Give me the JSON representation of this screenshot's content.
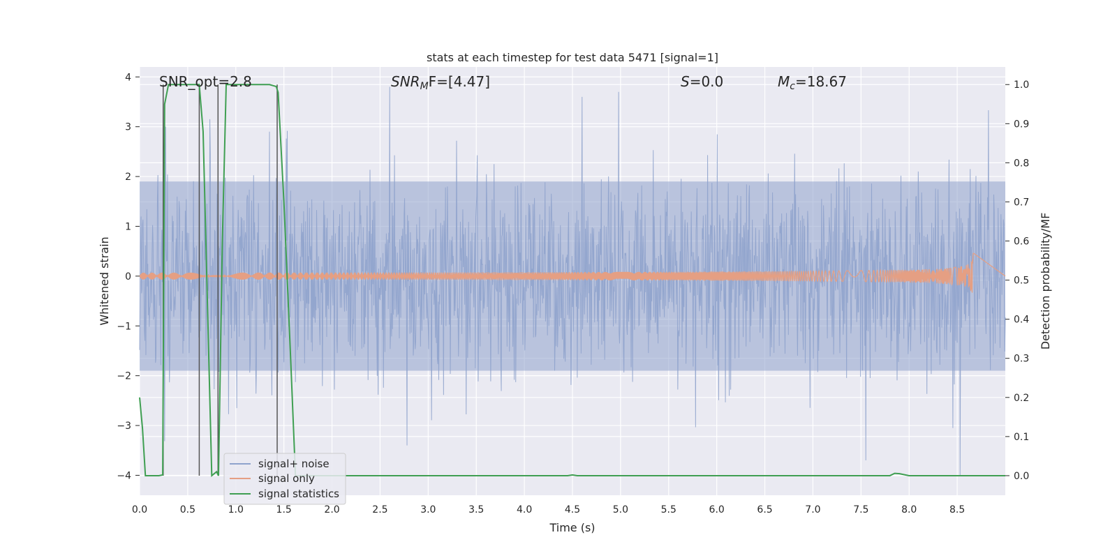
{
  "chart_data": {
    "type": "line",
    "title": "stats at each timestep for test data 5471 [signal=1]",
    "xlabel": "Time (s)",
    "ylabel": "Whitened strain",
    "ylabel_right": "Detection probability/MF",
    "xlim": [
      0.0,
      9.0
    ],
    "ylim": [
      -4.4,
      4.2
    ],
    "ylim_right": [
      -0.05,
      1.045
    ],
    "x_ticks": [
      "0.0",
      "0.5",
      "1.0",
      "1.5",
      "2.0",
      "2.5",
      "3.0",
      "3.5",
      "4.0",
      "4.5",
      "5.0",
      "5.5",
      "6.0",
      "6.5",
      "7.0",
      "7.5",
      "8.0",
      "8.5"
    ],
    "y_ticks": [
      "4",
      "3",
      "2",
      "1",
      "0",
      "−1",
      "−2",
      "−3",
      "−4"
    ],
    "y_right_ticks": [
      "1.0",
      "0.9",
      "0.8",
      "0.7",
      "0.6",
      "0.5",
      "0.4",
      "0.3",
      "0.2",
      "0.1",
      "0.0"
    ],
    "annotations": {
      "snr_opt": "SNR_opt=2.8",
      "snr_mf_name": "SNR",
      "snr_mf_sub": "M",
      "snr_mf_tail": "F=[4.47]",
      "s_name": "S",
      "s_val": "=0.0",
      "mc_name": "M",
      "mc_sub": "c",
      "mc_val": "=18.67"
    },
    "series": [
      {
        "name": "signal+ noise",
        "color": "#8fa3cc",
        "axis": "left",
        "sample_rate_hz": 200,
        "band_upper": 1.9,
        "band_lower": -1.9,
        "peaks": [
          [
            0.27,
            3.0
          ],
          [
            0.62,
            2.8
          ],
          [
            1.35,
            2.9
          ],
          [
            2.6,
            3.8
          ],
          [
            2.78,
            -3.4
          ],
          [
            4.6,
            3.6
          ],
          [
            4.98,
            3.7
          ],
          [
            7.55,
            -3.7
          ],
          [
            8.53,
            -4.0
          ]
        ]
      },
      {
        "name": "signal only",
        "color": "#e59f83",
        "axis": "left",
        "chirp_end": 8.67,
        "max_amplitude": 0.52
      },
      {
        "name": "signal statistics",
        "color": "#3f9f52",
        "axis": "right",
        "x": [
          0.0,
          0.03,
          0.06,
          0.1,
          0.2,
          0.24,
          0.26,
          0.3,
          0.4,
          0.55,
          0.6,
          0.62,
          0.66,
          0.75,
          0.8,
          0.82,
          0.86,
          0.9,
          1.0,
          1.2,
          1.35,
          1.42,
          1.44,
          1.5,
          1.57,
          1.62,
          2.0,
          3.0,
          4.0,
          4.45,
          4.5,
          4.55,
          5.0,
          6.0,
          7.0,
          7.8,
          7.85,
          7.9,
          8.0,
          8.1,
          8.3,
          8.6,
          9.0
        ],
        "y": [
          0.2,
          0.12,
          0.0,
          0.0,
          0.0,
          0.002,
          0.95,
          1.0,
          1.0,
          1.0,
          1.0,
          1.0,
          0.88,
          0.0,
          0.01,
          0.0,
          0.6,
          1.0,
          1.0,
          1.0,
          1.0,
          0.995,
          0.98,
          0.7,
          0.3,
          0.0,
          0.0,
          0.0,
          0.0,
          0.0,
          0.002,
          0.0,
          0.0,
          0.0,
          0.0,
          0.0,
          0.006,
          0.005,
          0.0,
          0.0,
          0.0,
          0.0,
          0.0
        ]
      }
    ],
    "vlines": [
      0.245,
      0.62,
      0.815,
      1.43
    ],
    "legend_location": "lower-left"
  }
}
